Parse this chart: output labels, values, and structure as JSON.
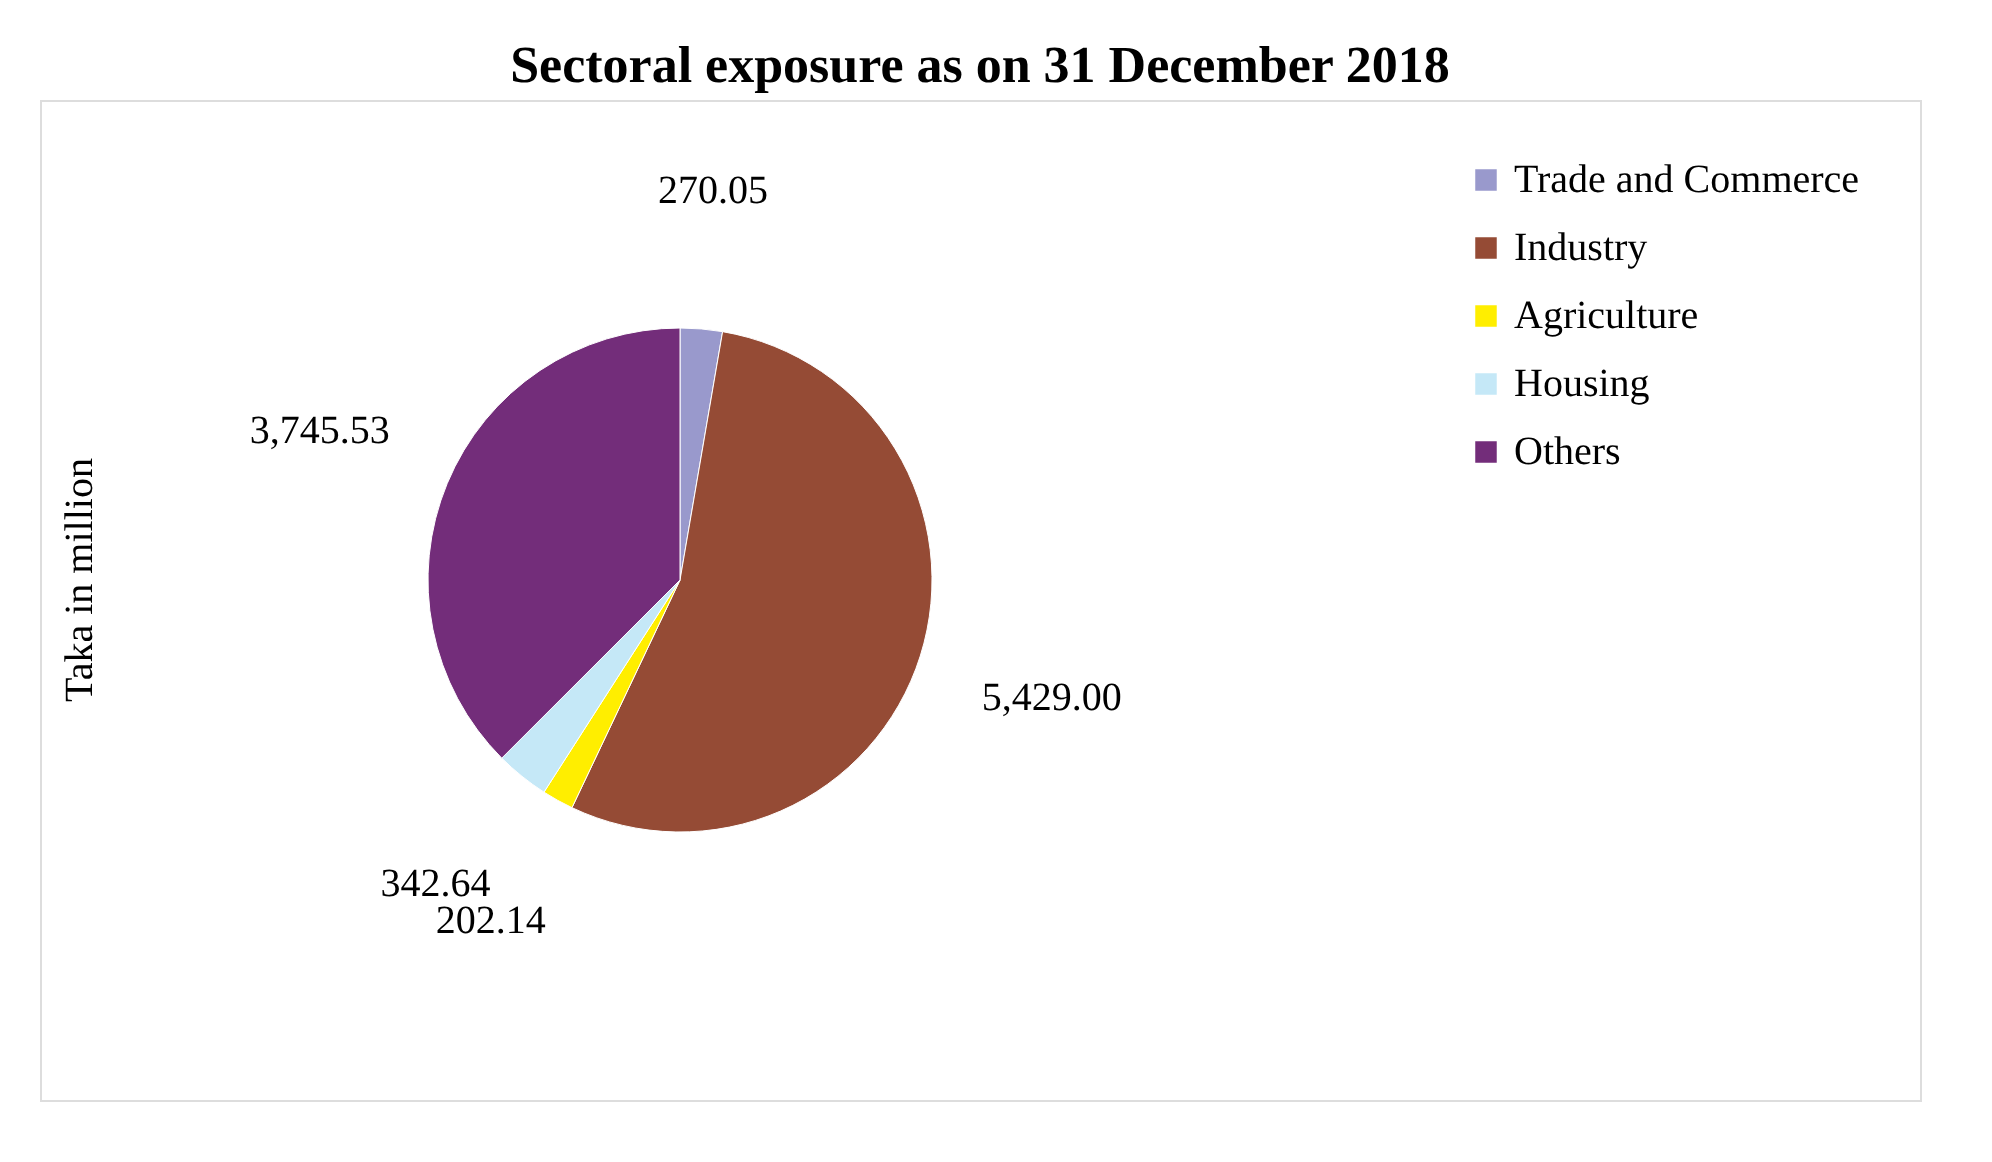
{
  "chart_data": {
    "type": "pie",
    "title": "Sectoral exposure as on 31 December 2018",
    "ylabel": "Taka in million",
    "categories": [
      "Trade and Commerce",
      "Industry",
      "Agriculture",
      "Housing",
      "Others"
    ],
    "values": [
      270.05,
      5429.0,
      202.14,
      342.64,
      3745.53
    ],
    "value_labels": [
      "270.05",
      "5,429.00",
      "202.14",
      "342.64",
      "3,745.53"
    ],
    "colors": [
      "#9999cc",
      "#954b35",
      "#ffee00",
      "#c5e8f7",
      "#732d7a"
    ],
    "legend": "top right"
  }
}
